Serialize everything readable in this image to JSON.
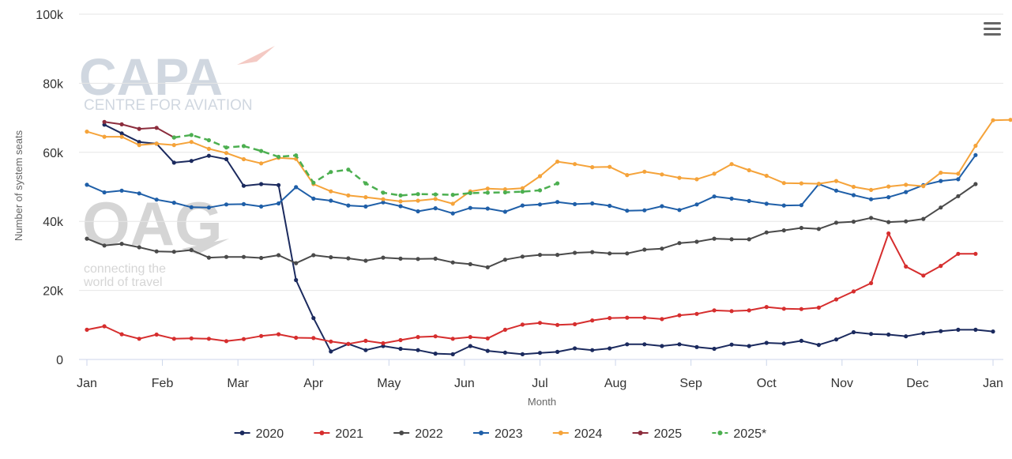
{
  "chart_data": {
    "type": "line",
    "title": "",
    "xlabel": "Month",
    "ylabel": "Number of system seats",
    "x_unit": "week of year",
    "x_range": [
      1,
      53
    ],
    "ylim": [
      0,
      100000
    ],
    "y_ticks": [
      0,
      20000,
      40000,
      60000,
      80000,
      100000
    ],
    "y_tick_labels": [
      "0",
      "20k",
      "40k",
      "60k",
      "80k",
      "100k"
    ],
    "x_tick_labels": [
      "Jan",
      "Feb",
      "Mar",
      "Apr",
      "May",
      "Jun",
      "Jul",
      "Aug",
      "Sep",
      "Oct",
      "Nov",
      "Dec",
      "Jan"
    ],
    "grid": "horizontal",
    "legend_position": "bottom-center",
    "series": [
      {
        "name": "2020",
        "color": "#1b2a5e",
        "dashed": false,
        "start_week": 2,
        "values": [
          68000,
          65500,
          63000,
          62500,
          57000,
          57500,
          59000,
          58000,
          50300,
          50800,
          50500,
          23000,
          12000,
          2300,
          4500,
          2700,
          3900,
          3100,
          2700,
          1700,
          1500,
          3900,
          2500,
          2000,
          1500,
          1900,
          2200,
          3200,
          2700,
          3200,
          4400,
          4400,
          3900,
          4400,
          3600,
          3100,
          4300,
          3900,
          4800,
          4600,
          5400,
          4200,
          5800,
          7900,
          7400,
          7200,
          6700,
          7600,
          8200,
          8600,
          8600,
          8100
        ]
      },
      {
        "name": "2021",
        "color": "#d62e2e",
        "dashed": false,
        "start_week": 1,
        "values": [
          8600,
          9600,
          7300,
          6000,
          7200,
          6000,
          6100,
          6000,
          5300,
          5900,
          6800,
          7300,
          6300,
          6200,
          5200,
          4500,
          5400,
          4700,
          5600,
          6500,
          6700,
          6000,
          6500,
          6100,
          8600,
          10100,
          10600,
          10000,
          10200,
          11300,
          12000,
          12100,
          12100,
          11700,
          12800,
          13200,
          14200,
          14000,
          14200,
          15200,
          14700,
          14600,
          15000,
          17400,
          19700,
          22100,
          36500,
          26900,
          24300,
          27100,
          30600,
          30600
        ]
      },
      {
        "name": "2022",
        "color": "#4a4a4a",
        "dashed": false,
        "start_week": 1,
        "values": [
          35000,
          33000,
          33500,
          32500,
          31300,
          31200,
          31700,
          29500,
          29700,
          29700,
          29400,
          30200,
          27900,
          30200,
          29600,
          29300,
          28600,
          29500,
          29200,
          29100,
          29200,
          28100,
          27600,
          26700,
          28900,
          29800,
          30300,
          30300,
          30900,
          31100,
          30700,
          30700,
          31800,
          32100,
          33700,
          34100,
          35000,
          34800,
          34800,
          36800,
          37400,
          38100,
          37800,
          39600,
          39900,
          41000,
          39800,
          40000,
          40700,
          44000,
          47300,
          50800
        ]
      },
      {
        "name": "2023",
        "color": "#1f5fa8",
        "dashed": false,
        "start_week": 1,
        "values": [
          50600,
          48400,
          48900,
          48100,
          46300,
          45400,
          44100,
          44000,
          44900,
          45000,
          44300,
          45200,
          49900,
          46600,
          46000,
          44600,
          44300,
          45500,
          44400,
          42900,
          43800,
          42300,
          43900,
          43700,
          42800,
          44600,
          44900,
          45600,
          45000,
          45200,
          44500,
          43100,
          43200,
          44400,
          43300,
          44900,
          47200,
          46600,
          45900,
          45100,
          44600,
          44700,
          50800,
          48900,
          47600,
          46400,
          47000,
          48500,
          50500,
          51700,
          52200,
          59200
        ]
      },
      {
        "name": "2024",
        "color": "#f5a33a",
        "dashed": false,
        "start_week": 1,
        "values": [
          66000,
          64500,
          64500,
          62100,
          62500,
          62100,
          63000,
          61000,
          59800,
          58000,
          56800,
          58400,
          58100,
          50800,
          48700,
          47500,
          47000,
          46400,
          45800,
          46000,
          46500,
          45100,
          48700,
          49500,
          49300,
          49600,
          53100,
          57300,
          56600,
          55700,
          55800,
          53400,
          54400,
          53600,
          52600,
          52200,
          53800,
          56600,
          54800,
          53200,
          51100,
          51000,
          50900,
          51700,
          50000,
          49100,
          50100,
          50600,
          50200,
          54100,
          53800,
          61900,
          69300,
          69400
        ]
      },
      {
        "name": "2025",
        "color": "#8c2d3d",
        "dashed": false,
        "start_week": 2,
        "values": [
          68800,
          68100,
          66800,
          67100,
          64300
        ]
      },
      {
        "name": "2025*",
        "color": "#4caf50",
        "dashed": true,
        "start_week": 6,
        "values": [
          64300,
          65000,
          63500,
          61400,
          61800,
          60400,
          58700,
          59100,
          51200,
          54300,
          55000,
          51000,
          48300,
          47500,
          47900,
          47800,
          47700,
          48200,
          48300,
          48400,
          48600,
          49000,
          51000
        ]
      }
    ]
  },
  "watermarks": {
    "capa_title": "CAPA",
    "capa_subtitle": "CENTRE FOR AVIATION",
    "oag_title": "OAG",
    "oag_tagline_1": "connecting the",
    "oag_tagline_2": "world of travel"
  },
  "menu_icon": "hamburger-menu-icon"
}
